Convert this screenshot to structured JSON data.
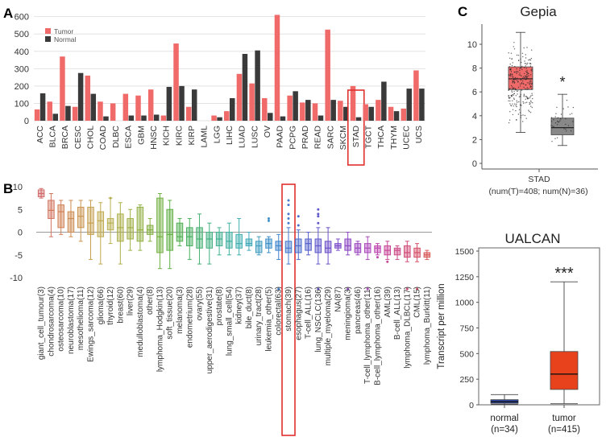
{
  "panel_labels": {
    "a": "A",
    "b": "B",
    "c": "C"
  },
  "chart_data": [
    {
      "type": "bar",
      "panel": "A",
      "categories": [
        "ACC",
        "BLCA",
        "BRCA",
        "CESC",
        "CHOL",
        "COAD",
        "DLBC",
        "ESCA",
        "GBM",
        "HNSC",
        "KICH",
        "KIRC",
        "KIRP",
        "LAML",
        "LGG",
        "LIHC",
        "LUAD",
        "LUSC",
        "OV",
        "PAAD",
        "PCPG",
        "PRAD",
        "READ",
        "SARC",
        "SKCM",
        "STAD",
        "TGCT",
        "THCA",
        "THYM",
        "UCEC",
        "UCS"
      ],
      "series": [
        {
          "name": "Tumor",
          "color": "#f06a6a",
          "values": [
            65,
            110,
            370,
            80,
            260,
            110,
            100,
            155,
            145,
            180,
            30,
            445,
            80,
            0,
            30,
            55,
            270,
            215,
            130,
            610,
            145,
            105,
            100,
            525,
            115,
            200,
            95,
            120,
            80,
            70,
            290
          ]
        },
        {
          "name": "Normal",
          "color": "#3a3a3a",
          "values": [
            158,
            40,
            85,
            275,
            155,
            25,
            0,
            30,
            30,
            35,
            195,
            200,
            180,
            0,
            20,
            130,
            385,
            405,
            45,
            25,
            170,
            120,
            30,
            120,
            80,
            20,
            80,
            225,
            55,
            185,
            185
          ]
        }
      ],
      "yticks": [
        "0",
        "100",
        "200",
        "300",
        "400",
        "500",
        "600"
      ],
      "ylim": [
        0,
        640
      ],
      "highlight": "STAD"
    },
    {
      "type": "box",
      "panel": "B",
      "yticks": [
        "10",
        "5",
        "0",
        "-5",
        "-10"
      ],
      "ylim": [
        -13,
        10.5
      ],
      "highlight": "stomach(39)",
      "categories": [
        {
          "label": "giant_cell_tumour(3)",
          "med": 8.5,
          "q1": 7.8,
          "q3": 9.3,
          "lo": 7.5,
          "hi": 9.6,
          "color": "#d06a6a",
          "outliers": []
        },
        {
          "label": "chondrosarcoma(4)",
          "med": 4.8,
          "q1": 3,
          "q3": 7,
          "lo": -1,
          "hi": 8.5,
          "color": "#d2745f",
          "outliers": []
        },
        {
          "label": "osteosarcoma(10)",
          "med": 4.5,
          "q1": 1,
          "q3": 6,
          "lo": -0.5,
          "hi": 7,
          "color": "#d08055",
          "outliers": []
        },
        {
          "label": "neuroblastoma(17)",
          "med": 3,
          "q1": 0,
          "q3": 4.5,
          "lo": -1,
          "hi": 7,
          "color": "#cd8a50",
          "outliers": []
        },
        {
          "label": "mesothelioma(11)",
          "med": 3.5,
          "q1": 1,
          "q3": 5.5,
          "lo": -2,
          "hi": 7,
          "color": "#c99450",
          "outliers": []
        },
        {
          "label": "Ewings_sarcoma(12)",
          "med": 2,
          "q1": -0.5,
          "q3": 5.5,
          "lo": -6,
          "hi": 7,
          "color": "#c6a050",
          "outliers": []
        },
        {
          "label": "glioma(66)",
          "med": 2.5,
          "q1": -1,
          "q3": 4.5,
          "lo": -7,
          "hi": 6.5,
          "color": "#c0aa50",
          "outliers": []
        },
        {
          "label": "thyroid(12)",
          "med": 2,
          "q1": 0.5,
          "q3": 3,
          "lo": -2.5,
          "hi": 7.5,
          "color": "#b8b050",
          "outliers": [
            7.5
          ]
        },
        {
          "label": "breast(60)",
          "med": 1,
          "q1": -2,
          "q3": 4,
          "lo": -7,
          "hi": 6.5,
          "color": "#acb04a",
          "outliers": []
        },
        {
          "label": "liver(29)",
          "med": 1,
          "q1": -1.5,
          "q3": 3,
          "lo": -4,
          "hi": 5,
          "color": "#a0b045",
          "outliers": []
        },
        {
          "label": "medulloblastoma(4)",
          "med": 0.5,
          "q1": -2,
          "q3": 5.5,
          "lo": -4,
          "hi": 6,
          "color": "#92b045",
          "outliers": []
        },
        {
          "label": "other(8)",
          "med": 0.5,
          "q1": -0.5,
          "q3": 1.5,
          "lo": -2,
          "hi": 3,
          "color": "#84b040",
          "outliers": []
        },
        {
          "label": "lymphoma_Hodgkin(13)",
          "med": -1,
          "q1": -4.5,
          "q3": 7.5,
          "lo": -8,
          "hi": 8.5,
          "color": "#72b040",
          "outliers": []
        },
        {
          "label": "soft_tissue(20)",
          "med": -0.5,
          "q1": -4,
          "q3": 5,
          "lo": -8,
          "hi": 7,
          "color": "#60b045",
          "outliers": []
        },
        {
          "label": "melanoma(3)",
          "med": -1,
          "q1": -2,
          "q3": 2,
          "lo": -3,
          "hi": 3,
          "color": "#50b050",
          "outliers": []
        },
        {
          "label": "endometrium(28)",
          "med": -1,
          "q1": -3,
          "q3": 1,
          "lo": -6,
          "hi": 3,
          "color": "#48b060",
          "outliers": []
        },
        {
          "label": "ovary(55)",
          "med": -1.5,
          "q1": -3.5,
          "q3": 1,
          "lo": -7,
          "hi": 4,
          "color": "#45b070",
          "outliers": []
        },
        {
          "label": "upper_aerodigestive(31)",
          "med": -1.5,
          "q1": -3.5,
          "q3": 0,
          "lo": -7,
          "hi": 2,
          "color": "#42b080",
          "outliers": []
        },
        {
          "label": "prostate(8)",
          "med": -1.5,
          "q1": -3,
          "q3": 0,
          "lo": -5,
          "hi": 1,
          "color": "#40b090",
          "outliers": []
        },
        {
          "label": "lung_small_cell(54)",
          "med": -2,
          "q1": -3.5,
          "q3": 0,
          "lo": -5,
          "hi": 2,
          "color": "#40b0a0",
          "outliers": []
        },
        {
          "label": "kidney(37)",
          "med": -2.5,
          "q1": -3.5,
          "q3": -0.5,
          "lo": -5,
          "hi": 3,
          "color": "#40b0b0",
          "outliers": []
        },
        {
          "label": "bile_duct(8)",
          "med": -2.5,
          "q1": -3,
          "q3": -1.5,
          "lo": -4,
          "hi": 0,
          "color": "#40a8b8",
          "outliers": []
        },
        {
          "label": "urinary_tract(28)",
          "med": -3,
          "q1": -4.5,
          "q3": -2,
          "lo": -5,
          "hi": -1,
          "color": "#409cc0",
          "outliers": []
        },
        {
          "label": "leukemia_other(5)",
          "med": -2.5,
          "q1": -3.5,
          "q3": -1.5,
          "lo": -4.5,
          "hi": -1,
          "color": "#4090c8",
          "outliers": [
            3,
            2.5
          ]
        },
        {
          "label": "colorectal(63)",
          "med": -3,
          "q1": -4,
          "q3": -2,
          "lo": -6,
          "hi": -0.5,
          "color": "#4084cc",
          "outliers": [
            -12.5
          ]
        },
        {
          "label": "stomach(39)",
          "med": -3.5,
          "q1": -4.5,
          "q3": -2,
          "lo": -7,
          "hi": 1,
          "color": "#4678cc",
          "outliers": [
            2,
            3,
            4,
            6,
            7
          ]
        },
        {
          "label": "esophagus(27)",
          "med": -3,
          "q1": -4.5,
          "q3": -1.5,
          "lo": -6,
          "hi": 0.5,
          "color": "#4c6ccc",
          "outliers": [
            1.5,
            3.5
          ]
        },
        {
          "label": "T-cell_ALL(16)",
          "med": -2.5,
          "q1": -4,
          "q3": -1.5,
          "lo": -5,
          "hi": 0,
          "color": "#5660cc",
          "outliers": []
        },
        {
          "label": "lung_NSCLC(136)",
          "med": -3,
          "q1": -4.5,
          "q3": -1.5,
          "lo": -7,
          "hi": 1,
          "color": "#6058cc",
          "outliers": [
            2,
            3.5,
            4,
            5,
            -12.5
          ]
        },
        {
          "label": "multiple_myeloma(29)",
          "med": -3.5,
          "q1": -4.5,
          "q3": -2,
          "lo": -7,
          "hi": 1,
          "color": "#6c50c8",
          "outliers": []
        },
        {
          "label": "NA(87)",
          "med": -3,
          "q1": -3.5,
          "q3": -2.5,
          "lo": -4,
          "hi": -1.5,
          "color": "#7c4cc8",
          "outliers": []
        },
        {
          "label": "meningioma(3)",
          "med": -3,
          "q1": -4,
          "q3": -1.5,
          "lo": -5,
          "hi": 0,
          "color": "#8c48c4",
          "outliers": [
            -12.5
          ]
        },
        {
          "label": "pancreas(46)",
          "med": -3.5,
          "q1": -4.5,
          "q3": -2.5,
          "lo": -5,
          "hi": -2,
          "color": "#9c48c0",
          "outliers": []
        },
        {
          "label": "T-cell_lymphoma_other(11)",
          "med": -3.5,
          "q1": -4.5,
          "q3": -2.5,
          "lo": -6,
          "hi": -1,
          "color": "#ac48bc",
          "outliers": [
            -12.5
          ]
        },
        {
          "label": "B-cell_lymphoma_other(16)",
          "med": -3.5,
          "q1": -4.5,
          "q3": -3,
          "lo": -5,
          "hi": -2.5,
          "color": "#bc48b0",
          "outliers": [
            -5.5
          ]
        },
        {
          "label": "AML(39)",
          "med": -4,
          "q1": -5,
          "q3": -3,
          "lo": -6,
          "hi": -2,
          "color": "#c84898",
          "outliers": [
            -6.5
          ]
        },
        {
          "label": "B-cell_ALL(13)",
          "med": -4,
          "q1": -5,
          "q3": -3.5,
          "lo": -6,
          "hi": -3,
          "color": "#cc4a88",
          "outliers": []
        },
        {
          "label": "lymphoma_DLBCL(17)",
          "med": -4.5,
          "q1": -5.5,
          "q3": -3,
          "lo": -6.5,
          "hi": -2,
          "color": "#d04c78",
          "outliers": [
            -12.5
          ]
        },
        {
          "label": "CML(15)",
          "med": -4.5,
          "q1": -5.5,
          "q3": -3.5,
          "lo": -6.5,
          "hi": -2.5,
          "color": "#d45068",
          "outliers": [
            -12.5
          ]
        },
        {
          "label": "lymphoma_Burkitt(11)",
          "med": -5,
          "q1": -5.5,
          "q3": -4.5,
          "lo": -6,
          "hi": -4,
          "color": "#d85858",
          "outliers": []
        }
      ]
    },
    {
      "type": "box",
      "panel": "C-top",
      "title": "Gepia",
      "yticks": [
        "0",
        "2",
        "4",
        "6",
        "8",
        "10"
      ],
      "ylim": [
        -0.4,
        11.5
      ],
      "xlabel": "STAD",
      "xsublabel": "(num(T)=408; num(N)=36)",
      "significance": "*",
      "groups": [
        {
          "name": "Tumor",
          "med": 7.1,
          "q1": 6.2,
          "q3": 8.1,
          "lo": 2.6,
          "hi": 11.0,
          "color": "#f06a6a",
          "n_points": 408
        },
        {
          "name": "Normal",
          "med": 3.0,
          "q1": 2.4,
          "q3": 3.8,
          "lo": 1.5,
          "hi": 5.8,
          "color": "#888888",
          "n_points": 36
        }
      ]
    },
    {
      "type": "box",
      "panel": "C-bottom",
      "title": "UALCAN",
      "ylabel": "Transcript per million",
      "yticks": [
        "0",
        "250",
        "500",
        "750",
        "1000",
        "1250",
        "1500"
      ],
      "ylim": [
        0,
        1500
      ],
      "significance": "***",
      "groups": [
        {
          "name": "normal",
          "label": "normal",
          "n": "(n=34)",
          "med": 30,
          "q1": 15,
          "q3": 50,
          "lo": 5,
          "hi": 100,
          "color": "#2f49a8"
        },
        {
          "name": "tumor",
          "label": "tumor",
          "n": "(n=415)",
          "med": 300,
          "q1": 150,
          "q3": 520,
          "lo": 10,
          "hi": 1200,
          "color": "#e8421c"
        }
      ]
    }
  ]
}
